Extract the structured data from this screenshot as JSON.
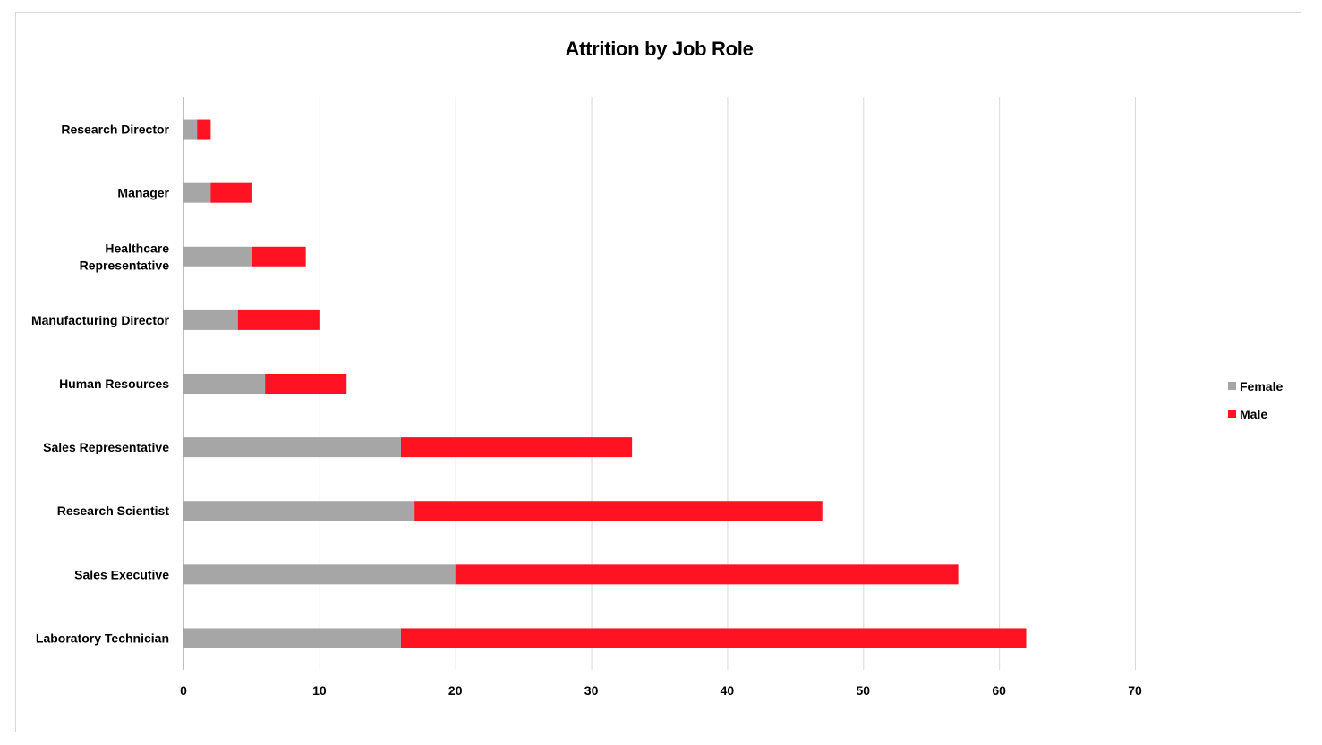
{
  "chart_data": {
    "type": "bar",
    "orientation": "horizontal",
    "stacked": true,
    "title": "Attrition by Job Role",
    "xlabel": "",
    "ylabel": "",
    "categories": [
      "Research Director",
      "Manager",
      "Healthcare Representative",
      "Manufacturing Director",
      "Human Resources",
      "Sales Representative",
      "Research Scientist",
      "Sales Executive",
      "Laboratory Technician"
    ],
    "category_lines": [
      [
        "Research Director"
      ],
      [
        "Manager"
      ],
      [
        "Healthcare",
        "Representative"
      ],
      [
        "Manufacturing Director"
      ],
      [
        "Human Resources"
      ],
      [
        "Sales Representative"
      ],
      [
        "Research Scientist"
      ],
      [
        "Sales Executive"
      ],
      [
        "Laboratory Technician"
      ]
    ],
    "series": [
      {
        "name": "Female",
        "color": "#a6a6a6",
        "values": [
          1,
          2,
          5,
          4,
          6,
          16,
          17,
          20,
          16
        ]
      },
      {
        "name": "Male",
        "color": "#ff1221",
        "values": [
          1,
          3,
          4,
          6,
          6,
          17,
          30,
          37,
          46
        ]
      }
    ],
    "xlim": [
      0,
      70
    ],
    "xticks": [
      0,
      10,
      20,
      30,
      40,
      50,
      60,
      70
    ],
    "grid": "vertical",
    "legend_position": "right"
  }
}
